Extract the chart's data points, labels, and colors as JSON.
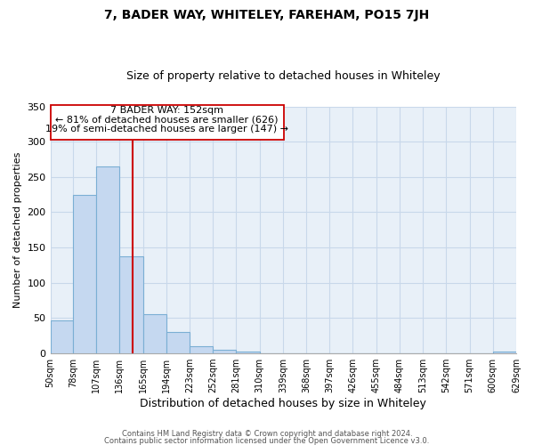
{
  "title": "7, BADER WAY, WHITELEY, FAREHAM, PO15 7JH",
  "subtitle": "Size of property relative to detached houses in Whiteley",
  "xlabel": "Distribution of detached houses by size in Whiteley",
  "ylabel": "Number of detached properties",
  "bar_edges": [
    50,
    78,
    107,
    136,
    165,
    194,
    223,
    252,
    281,
    310,
    339,
    368,
    397,
    426,
    455,
    484,
    513,
    542,
    571,
    600,
    629
  ],
  "bar_heights": [
    47,
    224,
    265,
    137,
    55,
    31,
    10,
    5,
    2,
    0,
    0,
    0,
    0,
    0,
    0,
    0,
    0,
    0,
    0,
    2
  ],
  "bar_color": "#c5d8f0",
  "bar_edge_color": "#7bafd4",
  "vline_x": 152,
  "vline_color": "#cc0000",
  "ylim": [
    0,
    350
  ],
  "xlim": [
    50,
    629
  ],
  "annotation_text_line1": "7 BADER WAY: 152sqm",
  "annotation_text_line2": "← 81% of detached houses are smaller (626)",
  "annotation_text_line3": "19% of semi-detached houses are larger (147) →",
  "footer_line1": "Contains HM Land Registry data © Crown copyright and database right 2024.",
  "footer_line2": "Contains public sector information licensed under the Open Government Licence v3.0.",
  "tick_labels": [
    "50sqm",
    "78sqm",
    "107sqm",
    "136sqm",
    "165sqm",
    "194sqm",
    "223sqm",
    "252sqm",
    "281sqm",
    "310sqm",
    "339sqm",
    "368sqm",
    "397sqm",
    "426sqm",
    "455sqm",
    "484sqm",
    "513sqm",
    "542sqm",
    "571sqm",
    "600sqm",
    "629sqm"
  ],
  "grid_color": "#c8d8ea",
  "background_color": "#e8f0f8",
  "title_fontsize": 10,
  "subtitle_fontsize": 9,
  "yticks": [
    0,
    50,
    100,
    150,
    200,
    250,
    300,
    350
  ]
}
